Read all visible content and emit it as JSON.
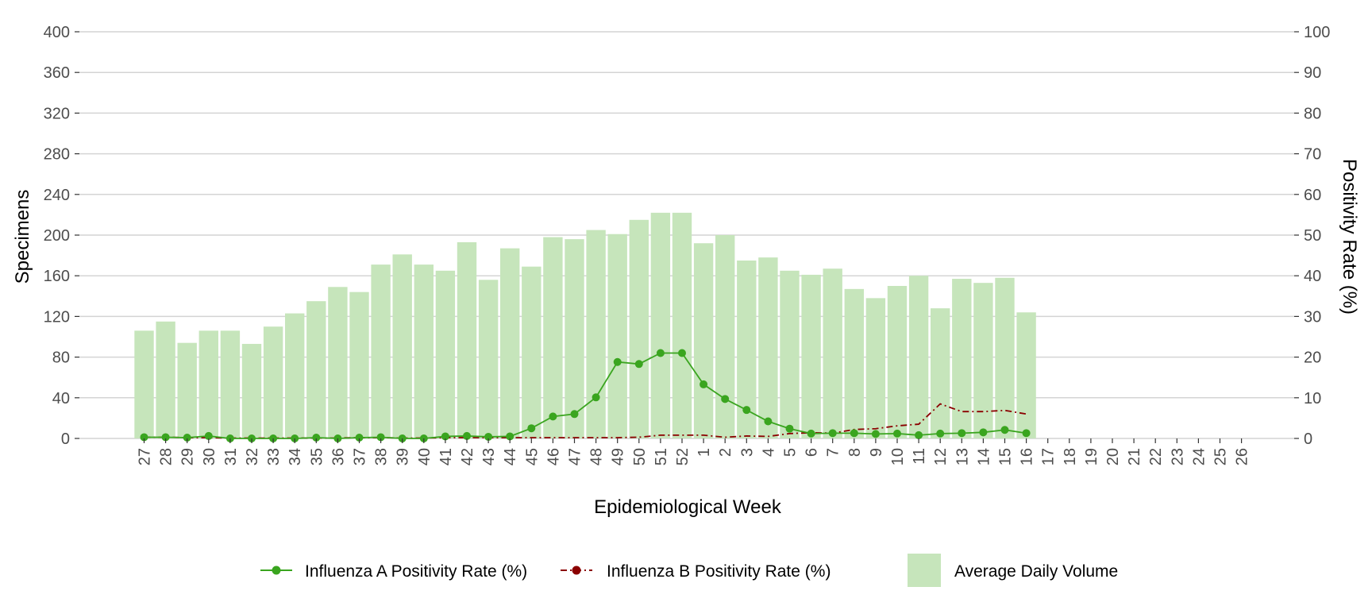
{
  "chart_data": {
    "type": "bar",
    "xlabel": "Epidemiological Week",
    "ylabel": "Specimens",
    "y2label": "Positivity Rate (%)",
    "ylim": [
      0,
      400
    ],
    "y2lim": [
      0,
      100
    ],
    "yticks": [
      "0",
      "40",
      "80",
      "120",
      "160",
      "200",
      "240",
      "280",
      "320",
      "360",
      "400"
    ],
    "y2ticks": [
      "0",
      "10",
      "20",
      "30",
      "40",
      "50",
      "60",
      "70",
      "80",
      "90",
      "100"
    ],
    "grid": true,
    "legend_position": "bottom",
    "categories": [
      "27",
      "28",
      "29",
      "30",
      "31",
      "32",
      "33",
      "34",
      "35",
      "36",
      "37",
      "38",
      "39",
      "40",
      "41",
      "42",
      "43",
      "44",
      "45",
      "46",
      "47",
      "48",
      "49",
      "50",
      "51",
      "52",
      "1",
      "2",
      "3",
      "4",
      "5",
      "6",
      "7",
      "8",
      "9",
      "10",
      "11",
      "12",
      "13",
      "14",
      "15",
      "16",
      "17",
      "18",
      "19",
      "20",
      "21",
      "22",
      "23",
      "24",
      "25",
      "26"
    ],
    "series": [
      {
        "name": "Average Daily Volume",
        "kind": "bar",
        "axis": "left",
        "color": "#c6e5bb",
        "values": [
          106,
          115,
          94,
          106,
          106,
          93,
          110,
          123,
          135,
          149,
          144,
          171,
          181,
          171,
          165,
          193,
          156,
          187,
          169,
          198,
          196,
          205,
          201,
          215,
          222,
          222,
          192,
          200,
          175,
          178,
          165,
          161,
          167,
          147,
          138,
          150,
          160,
          128,
          157,
          153,
          158,
          124,
          null,
          null,
          null,
          null,
          null,
          null,
          null,
          null,
          null,
          null
        ]
      },
      {
        "name": "Influenza A Positivity Rate (%)",
        "kind": "line",
        "axis": "right",
        "color": "#3aa51f",
        "values": [
          0.3,
          0.3,
          0.2,
          0.6,
          0,
          0,
          0,
          0,
          0.2,
          0,
          0.2,
          0.3,
          0,
          0,
          0.5,
          0.6,
          0.4,
          0.5,
          2.5,
          5.4,
          6.0,
          10.1,
          18.8,
          18.3,
          21.0,
          21.0,
          13.3,
          9.7,
          7.0,
          4.2,
          2.4,
          1.2,
          1.3,
          1.3,
          1.1,
          1.2,
          0.8,
          1.2,
          1.3,
          1.5,
          2.1,
          1.3,
          null,
          null,
          null,
          null,
          null,
          null,
          null,
          null,
          null,
          null
        ]
      },
      {
        "name": "Influenza B Positivity Rate (%)",
        "kind": "line",
        "dash": "dashdot",
        "axis": "right",
        "color": "#8b0000",
        "values": [
          0.3,
          0.3,
          0.2,
          0.2,
          0.1,
          0.1,
          0.1,
          0.1,
          0.1,
          0.1,
          0.2,
          0.2,
          0.1,
          0.1,
          0.2,
          0.2,
          0.2,
          0.2,
          0.2,
          0.2,
          0.2,
          0.2,
          0.2,
          0.3,
          0.8,
          0.8,
          0.8,
          0.3,
          0.6,
          0.5,
          1.2,
          1.4,
          1.3,
          2.2,
          2.4,
          3.1,
          3.5,
          8.5,
          6.6,
          6.6,
          6.9,
          6.0,
          null,
          null,
          null,
          null,
          null,
          null,
          null,
          null,
          null,
          null
        ]
      }
    ]
  }
}
